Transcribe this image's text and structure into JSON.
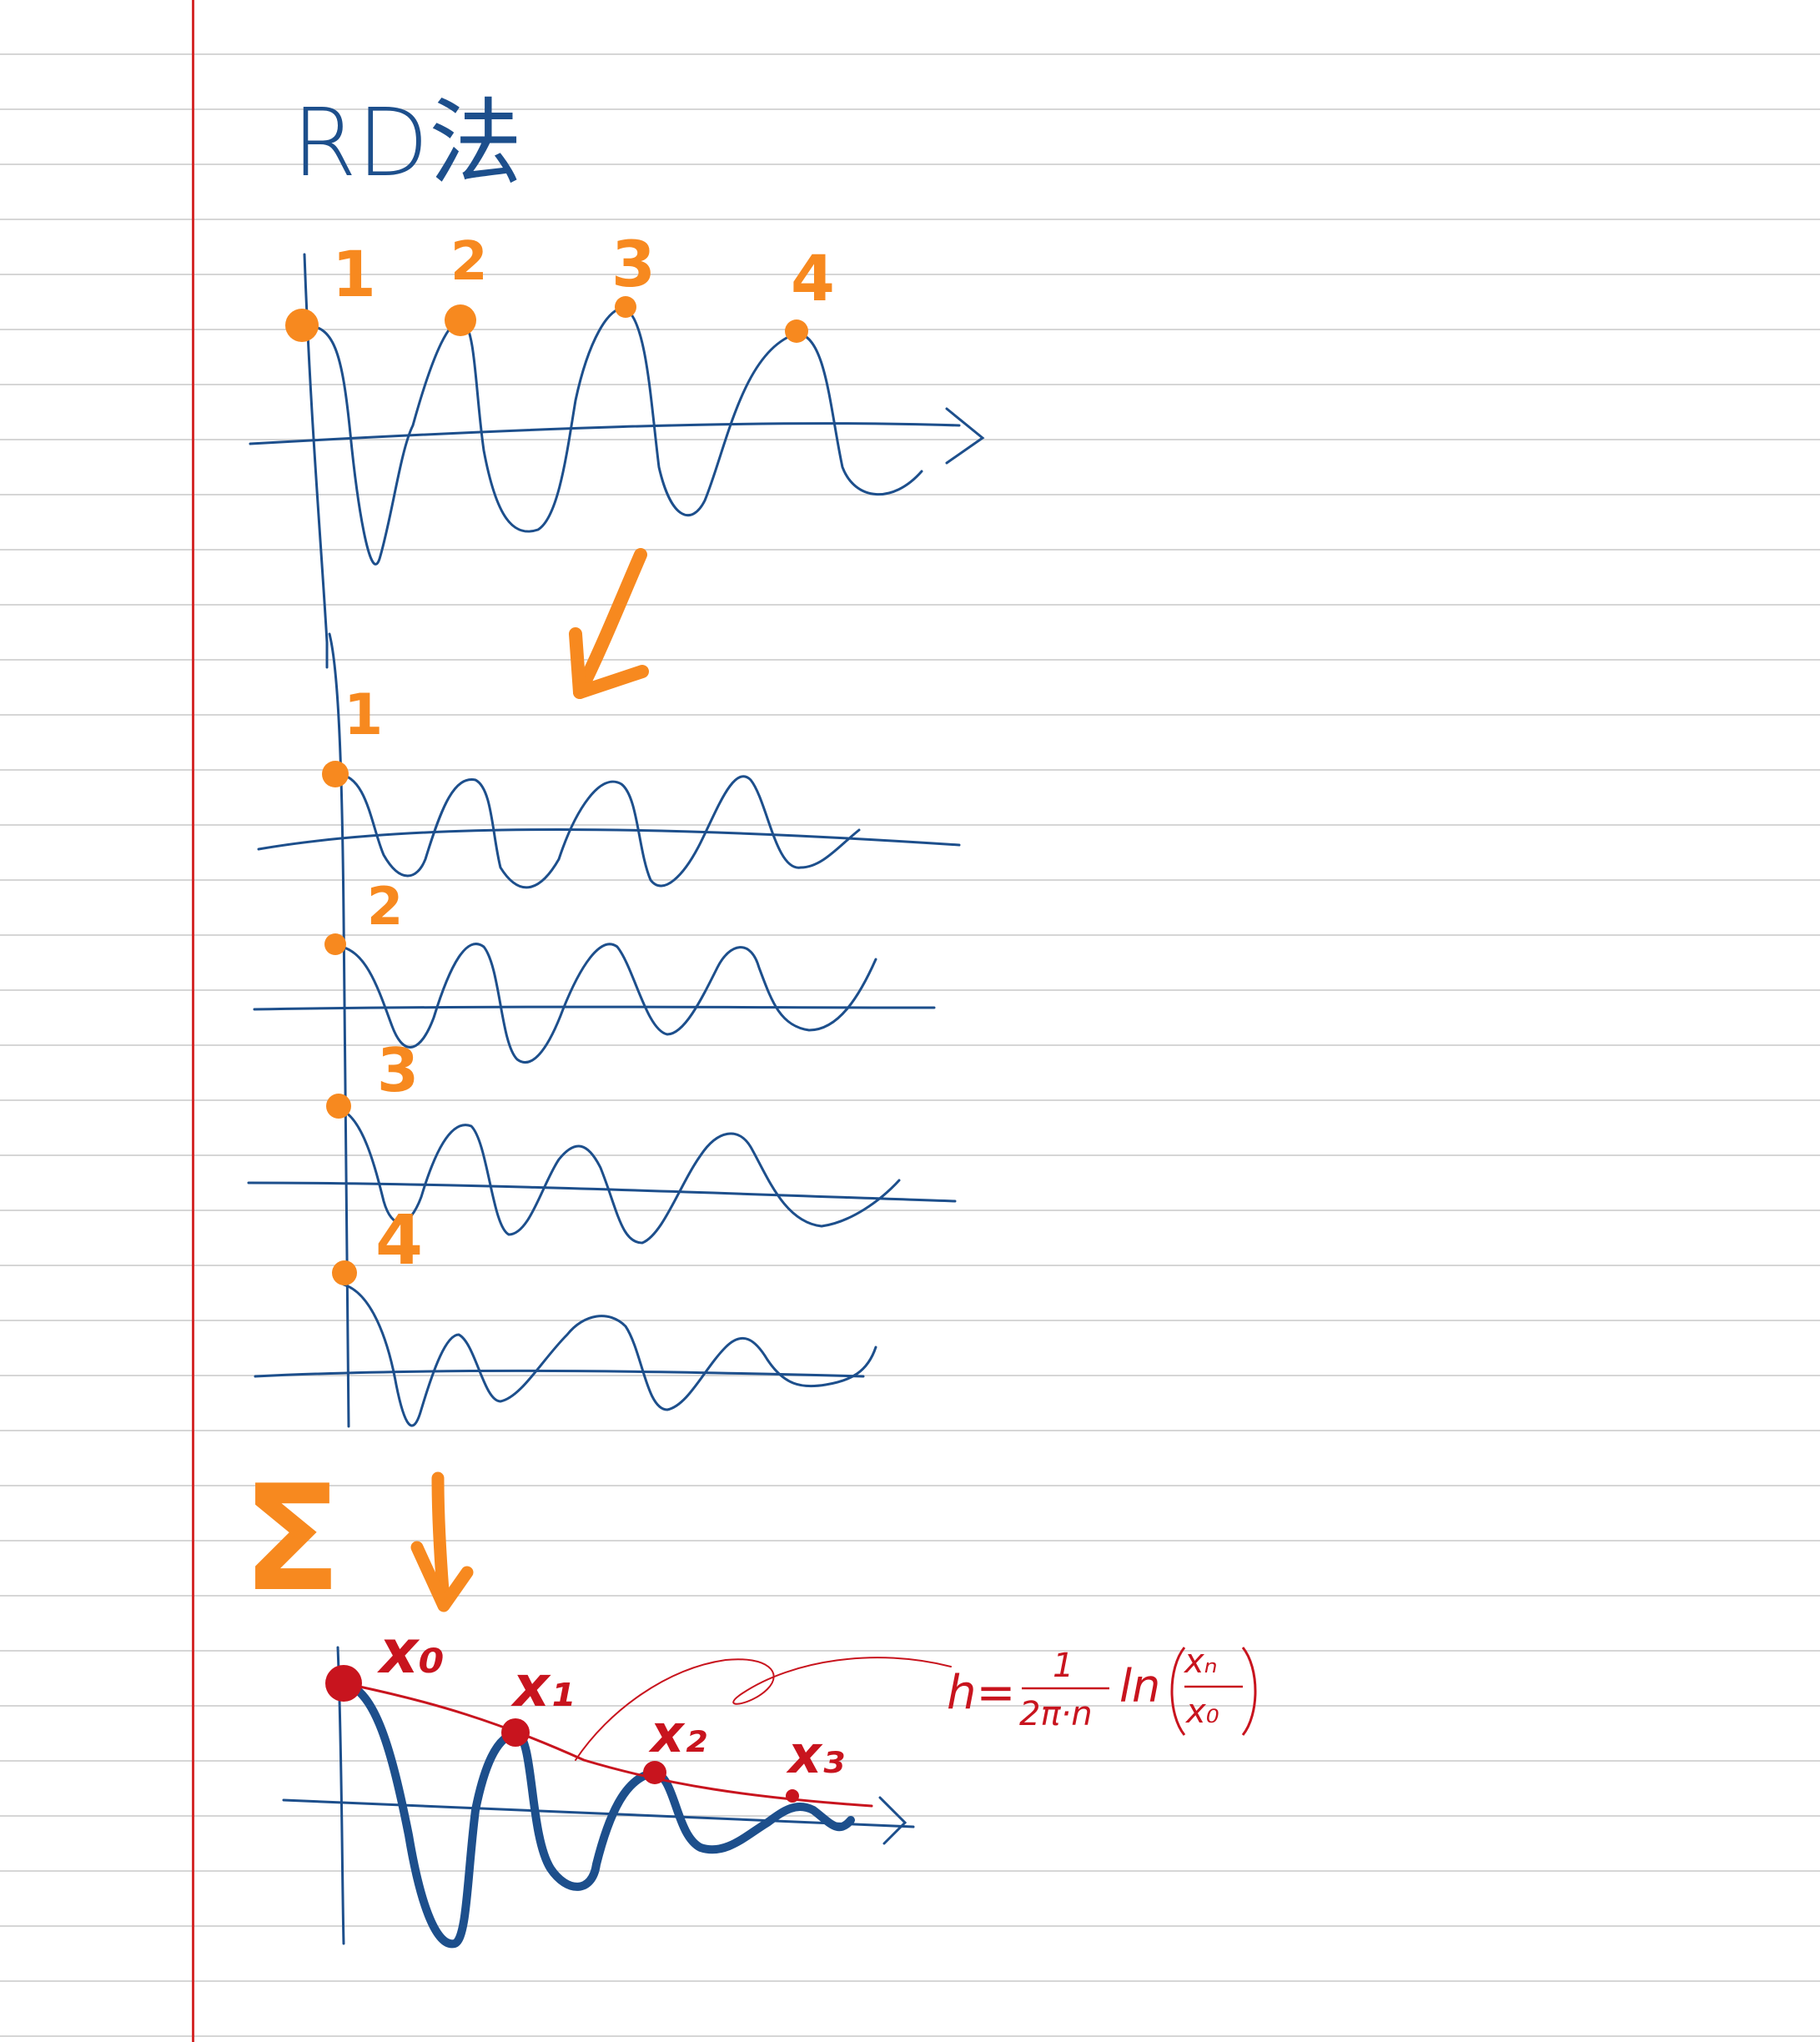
{
  "title": "RD法",
  "colors": {
    "ink_blue": "#1d4f8c",
    "orange": "#f7891f",
    "red": "#c8141e",
    "margin_red": "#d42a2a",
    "rule_gray": "#d6d6d6"
  },
  "peak_labels": [
    "1",
    "2",
    "3",
    "4"
  ],
  "segment_labels": [
    "1",
    "2",
    "3",
    "4"
  ],
  "sum_symbol": "Σ",
  "points": [
    "x₀",
    "x₁",
    "x₂",
    "x₃"
  ],
  "formula": {
    "lhs": "h=",
    "frac_num": "1",
    "frac_den": "2π·n",
    "ln": "ln",
    "inner_num": "xₙ",
    "inner_den": "x₀"
  }
}
